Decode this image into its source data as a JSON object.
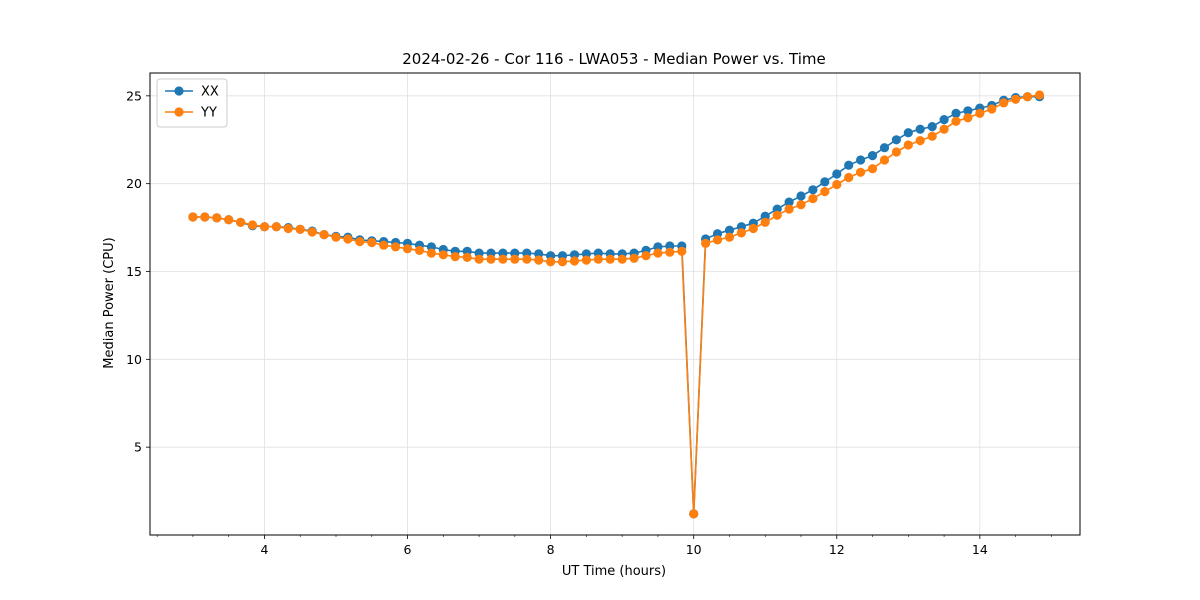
{
  "chart_data": {
    "type": "line",
    "title": "2024-02-26 - Cor 116 - LWA053 - Median Power vs. Time",
    "xlabel": "UT Time (hours)",
    "ylabel": "Median Power (CPU)",
    "xlim": [
      2.4,
      15.4
    ],
    "ylim": [
      0.0,
      26.3
    ],
    "xticks": [
      4,
      6,
      8,
      10,
      12,
      14
    ],
    "yticks": [
      5,
      10,
      15,
      20,
      25
    ],
    "grid": true,
    "legend_position": "top-left",
    "x": [
      3.0,
      3.1667,
      3.3333,
      3.5,
      3.6667,
      3.8333,
      4.0,
      4.1667,
      4.3333,
      4.5,
      4.6667,
      4.8333,
      5.0,
      5.1667,
      5.3333,
      5.5,
      5.6667,
      5.8333,
      6.0,
      6.1667,
      6.3333,
      6.5,
      6.6667,
      6.8333,
      7.0,
      7.1667,
      7.3333,
      7.5,
      7.6667,
      7.8333,
      8.0,
      8.1667,
      8.3333,
      8.5,
      8.6667,
      8.8333,
      9.0,
      9.1667,
      9.3333,
      9.5,
      9.6667,
      9.8333,
      10.0,
      10.1667,
      10.3333,
      10.5,
      10.6667,
      10.8333,
      11.0,
      11.1667,
      11.3333,
      11.5,
      11.6667,
      11.8333,
      12.0,
      12.1667,
      12.3333,
      12.5,
      12.6667,
      12.8333,
      13.0,
      13.1667,
      13.3333,
      13.5,
      13.6667,
      13.8333,
      14.0,
      14.1667,
      14.3333,
      14.5,
      14.6667,
      14.8333
    ],
    "series": [
      {
        "name": "XX",
        "color": "#1f77b4",
        "values": [
          18.1,
          18.1,
          18.05,
          17.95,
          17.8,
          17.6,
          17.55,
          17.55,
          17.5,
          17.4,
          17.3,
          17.1,
          17.0,
          16.95,
          16.8,
          16.75,
          16.7,
          16.65,
          16.6,
          16.5,
          16.4,
          16.25,
          16.15,
          16.15,
          16.05,
          16.05,
          16.05,
          16.05,
          16.05,
          16.0,
          15.9,
          15.9,
          15.95,
          16.0,
          16.05,
          16.0,
          16.0,
          16.05,
          16.2,
          16.4,
          16.45,
          16.45,
          1.2,
          16.85,
          17.15,
          17.35,
          17.55,
          17.75,
          18.15,
          18.55,
          18.95,
          19.3,
          19.65,
          20.1,
          20.55,
          21.05,
          21.35,
          21.6,
          22.05,
          22.5,
          22.9,
          23.1,
          23.25,
          23.65,
          24.0,
          24.15,
          24.3,
          24.45,
          24.75,
          24.9,
          24.95,
          24.95
        ]
      },
      {
        "name": "YY",
        "color": "#ff7f0e",
        "values": [
          18.1,
          18.1,
          18.05,
          17.95,
          17.8,
          17.65,
          17.55,
          17.55,
          17.45,
          17.4,
          17.25,
          17.1,
          16.95,
          16.85,
          16.7,
          16.65,
          16.5,
          16.4,
          16.3,
          16.2,
          16.05,
          15.95,
          15.85,
          15.8,
          15.7,
          15.7,
          15.7,
          15.7,
          15.7,
          15.65,
          15.55,
          15.55,
          15.6,
          15.65,
          15.7,
          15.7,
          15.7,
          15.75,
          15.9,
          16.05,
          16.1,
          16.15,
          1.2,
          16.6,
          16.8,
          16.95,
          17.2,
          17.45,
          17.8,
          18.2,
          18.55,
          18.8,
          19.15,
          19.55,
          19.95,
          20.35,
          20.65,
          20.85,
          21.35,
          21.8,
          22.2,
          22.45,
          22.7,
          23.1,
          23.55,
          23.75,
          24.0,
          24.25,
          24.6,
          24.8,
          24.95,
          25.05
        ]
      }
    ]
  }
}
